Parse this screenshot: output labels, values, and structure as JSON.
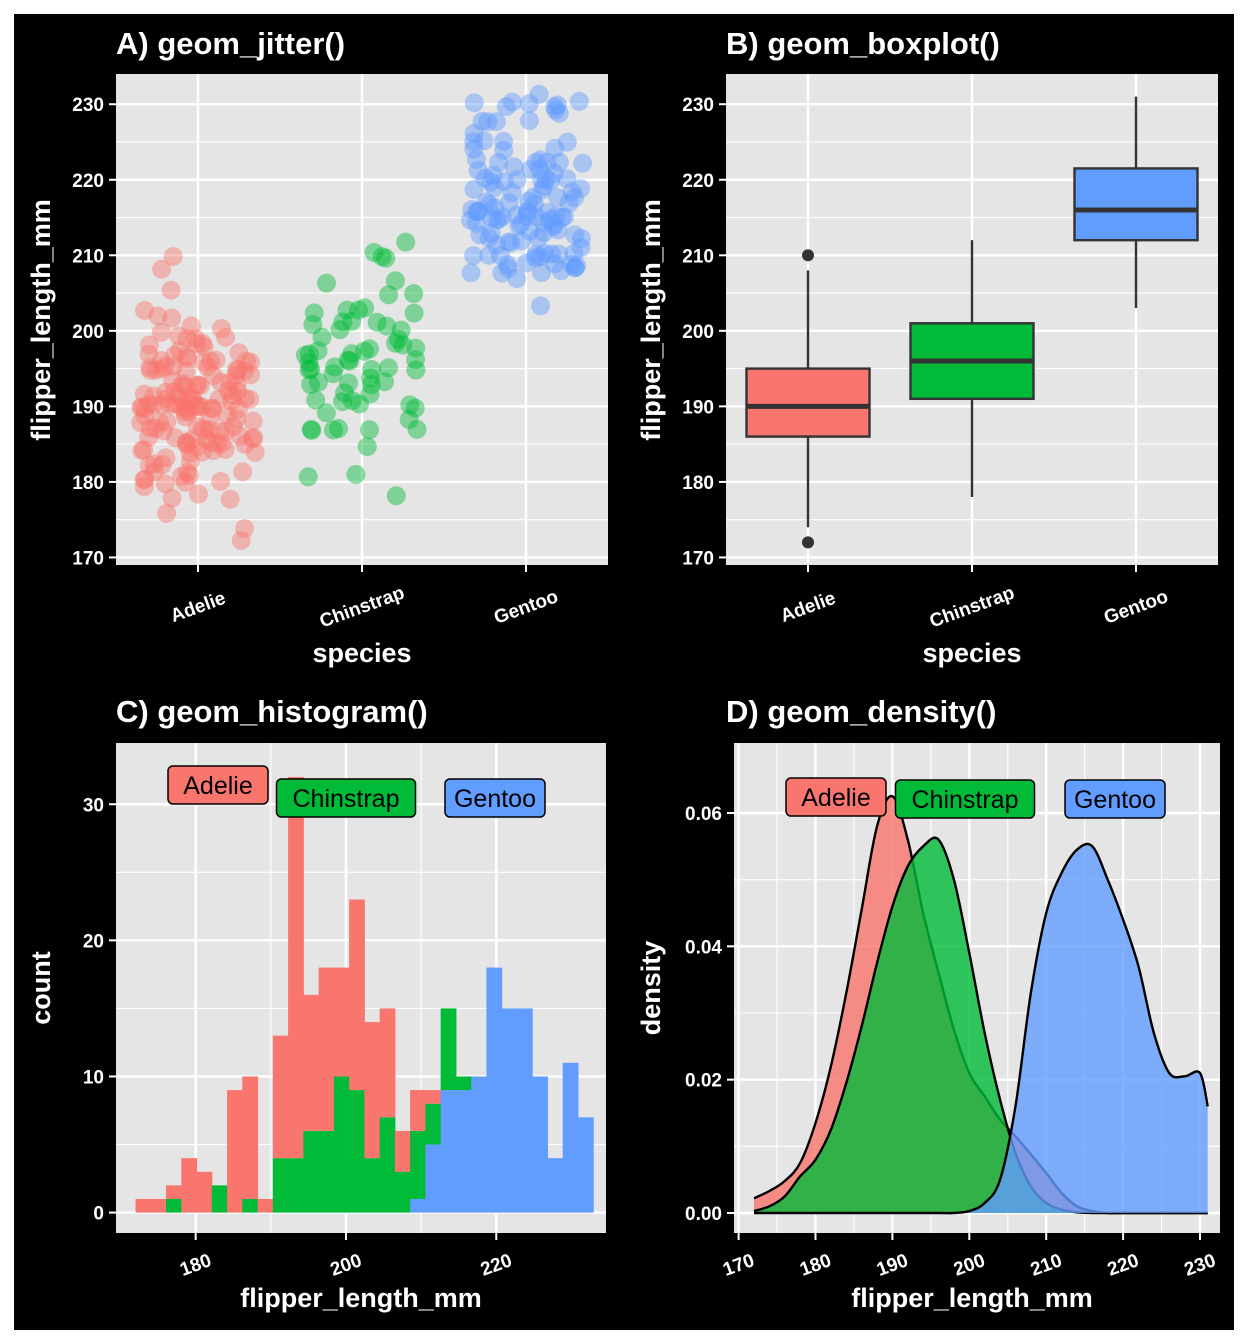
{
  "figure": {
    "background": "#000000",
    "panel_bg": "#e5e5e5",
    "grid_color": "#ffffff"
  },
  "colors": {
    "Adelie": "#f8766d",
    "Chinstrap": "#00ba38",
    "Gentoo": "#619cff"
  },
  "chart_data": [
    {
      "id": "A",
      "type": "scatter",
      "title": "A) geom_jitter()",
      "xlabel": "species",
      "ylabel": "flipper_length_mm",
      "categories": [
        "Adelie",
        "Chinstrap",
        "Gentoo"
      ],
      "ylim": [
        169,
        234
      ],
      "yticks": [
        170,
        180,
        190,
        200,
        210,
        220,
        230
      ],
      "grid": true,
      "jitter_width": 0.35,
      "series": [
        {
          "name": "Adelie",
          "values": [
            181,
            186,
            195,
            193,
            190,
            181,
            195,
            193,
            190,
            186,
            180,
            182,
            191,
            198,
            185,
            195,
            197,
            184,
            194,
            174,
            180,
            189,
            185,
            180,
            187,
            183,
            187,
            172,
            180,
            178,
            178,
            188,
            184,
            195,
            196,
            190,
            180,
            181,
            184,
            182,
            195,
            186,
            196,
            185,
            190,
            182,
            179,
            190,
            191,
            186,
            188,
            190,
            200,
            187,
            191,
            186,
            193,
            181,
            194,
            185,
            195,
            185,
            192,
            184,
            192,
            195,
            188,
            190,
            198,
            190,
            190,
            196,
            197,
            190,
            195,
            191,
            184,
            187,
            195,
            189,
            196,
            187,
            193,
            191,
            194,
            190,
            189,
            189,
            190,
            202,
            205,
            185,
            186,
            187,
            208,
            190,
            196,
            178,
            192,
            192,
            203,
            183,
            190,
            193,
            184,
            199,
            190,
            181,
            197,
            198,
            191,
            193,
            197,
            191,
            196,
            188,
            199,
            189,
            189,
            187,
            198,
            176,
            202,
            186,
            199,
            191,
            195,
            191,
            210,
            190,
            197,
            193,
            199,
            187,
            190,
            191,
            200,
            185,
            193,
            193,
            187,
            188,
            190,
            192,
            185,
            190,
            184,
            195,
            193,
            187,
            201,
            191,
            196
          ]
        },
        {
          "name": "Chinstrap",
          "values": [
            192,
            196,
            193,
            188,
            197,
            198,
            178,
            197,
            195,
            198,
            193,
            194,
            185,
            201,
            190,
            201,
            197,
            181,
            190,
            195,
            181,
            191,
            187,
            193,
            195,
            197,
            200,
            200,
            191,
            205,
            187,
            201,
            187,
            203,
            195,
            199,
            195,
            210,
            192,
            205,
            210,
            187,
            196,
            196,
            196,
            201,
            190,
            212,
            187,
            198,
            199,
            201,
            193,
            203,
            187,
            197,
            191,
            203,
            202,
            194,
            206,
            189,
            195,
            207,
            202,
            193,
            210,
            198
          ]
        },
        {
          "name": "Gentoo",
          "values": [
            211,
            230,
            210,
            218,
            215,
            210,
            211,
            219,
            209,
            215,
            214,
            216,
            214,
            213,
            210,
            217,
            210,
            221,
            209,
            222,
            218,
            215,
            213,
            215,
            215,
            215,
            216,
            215,
            210,
            220,
            222,
            209,
            207,
            230,
            220,
            220,
            213,
            219,
            208,
            208,
            208,
            225,
            210,
            216,
            222,
            217,
            210,
            225,
            213,
            215,
            210,
            220,
            210,
            225,
            217,
            220,
            208,
            220,
            208,
            224,
            208,
            221,
            214,
            231,
            219,
            230,
            214,
            229,
            220,
            223,
            216,
            221,
            221,
            217,
            216,
            230,
            209,
            220,
            215,
            223,
            212,
            221,
            212,
            224,
            212,
            228,
            218,
            218,
            212,
            230,
            218,
            228,
            212,
            224,
            214,
            226,
            216,
            222,
            203,
            225,
            219,
            228,
            215,
            228,
            216,
            215,
            210,
            219,
            208,
            209,
            216,
            229,
            213,
            230,
            217,
            230,
            217,
            222,
            214,
            215,
            222,
            212,
            213
          ]
        }
      ]
    },
    {
      "id": "B",
      "type": "box",
      "title": "B) geom_boxplot()",
      "xlabel": "species",
      "ylabel": "flipper_length_mm",
      "categories": [
        "Adelie",
        "Chinstrap",
        "Gentoo"
      ],
      "ylim": [
        169,
        234
      ],
      "yticks": [
        170,
        180,
        190,
        200,
        210,
        220,
        230
      ],
      "grid": true,
      "boxes": [
        {
          "name": "Adelie",
          "q1": 186,
          "median": 190,
          "q3": 195,
          "whisker_low": 174,
          "whisker_high": 208,
          "outliers": [
            172,
            210
          ]
        },
        {
          "name": "Chinstrap",
          "q1": 191,
          "median": 196,
          "q3": 201,
          "whisker_low": 178,
          "whisker_high": 212,
          "outliers": []
        },
        {
          "name": "Gentoo",
          "q1": 212,
          "median": 216,
          "q3": 221.5,
          "whisker_low": 203,
          "whisker_high": 231,
          "outliers": []
        }
      ]
    },
    {
      "id": "C",
      "type": "bar",
      "stacked": true,
      "title": "C) geom_histogram()",
      "xlabel": "flipper_length_mm",
      "ylabel": "count",
      "xlim": [
        169.4,
        234.6
      ],
      "ylim": [
        -1.5,
        34.5
      ],
      "xticks": [
        180,
        200,
        220
      ],
      "yticks": [
        0,
        10,
        20,
        30
      ],
      "grid": true,
      "bin_start": 172,
      "bin_width": 2.03,
      "legend_labels": [
        "Adelie",
        "Chinstrap",
        "Gentoo"
      ],
      "series": [
        {
          "name": "Adelie",
          "values": [
            1,
            1,
            1,
            4,
            3,
            0,
            9,
            9,
            1,
            9,
            28,
            10,
            12,
            8,
            14,
            10,
            8,
            3,
            3,
            1,
            0,
            0,
            0,
            0,
            0,
            0,
            0,
            0,
            0,
            0
          ]
        },
        {
          "name": "Chinstrap",
          "values": [
            0,
            0,
            1,
            0,
            0,
            2,
            0,
            1,
            0,
            4,
            4,
            6,
            6,
            10,
            9,
            4,
            7,
            3,
            5,
            3,
            6,
            1,
            0,
            0,
            0,
            0,
            0,
            0,
            0,
            0
          ]
        },
        {
          "name": "Gentoo",
          "values": [
            0,
            0,
            0,
            0,
            0,
            0,
            0,
            0,
            0,
            0,
            0,
            0,
            0,
            0,
            0,
            0,
            0,
            0,
            1,
            5,
            9,
            9,
            10,
            18,
            15,
            15,
            10,
            4,
            11,
            7
          ]
        }
      ]
    },
    {
      "id": "D",
      "type": "area",
      "title": "D) geom_density()",
      "xlabel": "flipper_length_mm",
      "ylabel": "density",
      "xlim": [
        169.4,
        232.6
      ],
      "ylim": [
        -0.003,
        0.0705
      ],
      "xticks": [
        170,
        180,
        190,
        200,
        210,
        220,
        230
      ],
      "yticks": [
        0.0,
        0.02,
        0.04,
        0.06
      ],
      "ytick_labels": [
        "0.00",
        "0.02",
        "0.04",
        "0.06"
      ],
      "grid": true,
      "x": [
        172,
        174,
        176,
        178,
        180,
        182,
        184,
        186,
        188,
        190,
        192,
        194,
        196,
        198,
        200,
        202,
        204,
        206,
        208,
        210,
        212,
        214,
        216,
        218,
        220,
        222,
        224,
        226,
        228,
        230,
        231
      ],
      "legend_labels": [
        "Adelie",
        "Chinstrap",
        "Gentoo"
      ],
      "series": [
        {
          "name": "Adelie",
          "values": [
            0.0022,
            0.0033,
            0.0048,
            0.0075,
            0.0135,
            0.022,
            0.033,
            0.0455,
            0.058,
            0.0625,
            0.056,
            0.045,
            0.036,
            0.0275,
            0.021,
            0.0175,
            0.014,
            0.0115,
            0.0088,
            0.006,
            0.003,
            0.001,
            0.0003,
            0,
            0,
            0,
            0,
            0,
            0,
            0,
            0
          ]
        },
        {
          "name": "Chinstrap",
          "values": [
            0.0003,
            0.001,
            0.0025,
            0.0055,
            0.008,
            0.0125,
            0.0195,
            0.028,
            0.0375,
            0.046,
            0.052,
            0.055,
            0.056,
            0.05,
            0.039,
            0.027,
            0.017,
            0.009,
            0.004,
            0.0015,
            0.0005,
            0.0001,
            0,
            0,
            0,
            0,
            0,
            0,
            0,
            0,
            0
          ]
        },
        {
          "name": "Gentoo",
          "values": [
            0,
            0,
            0,
            0,
            0,
            0,
            0,
            0,
            0,
            0,
            0,
            0,
            0,
            0,
            0.0003,
            0.0015,
            0.005,
            0.016,
            0.033,
            0.045,
            0.051,
            0.0545,
            0.055,
            0.05,
            0.044,
            0.037,
            0.027,
            0.021,
            0.0205,
            0.021,
            0.016
          ]
        }
      ]
    }
  ]
}
